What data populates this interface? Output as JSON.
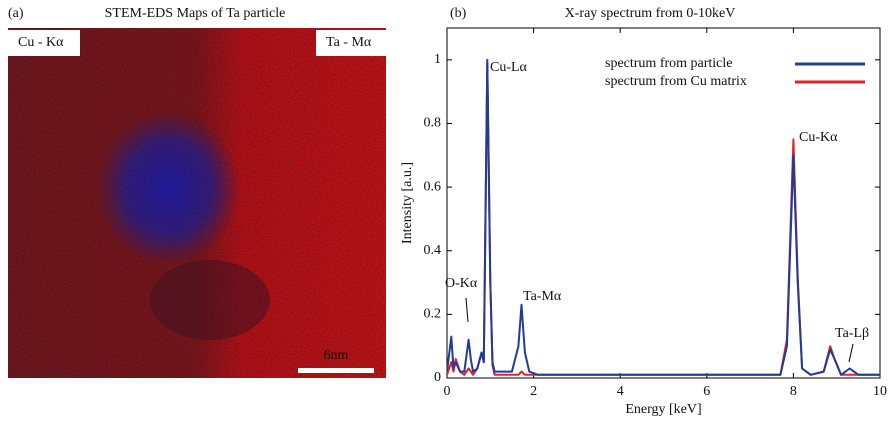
{
  "chart_data": [
    {
      "type": "image",
      "label": "(a)",
      "title": "STEM-EDS Maps of Ta particle",
      "annotations": [
        "Cu - Kα",
        "Ta - Mα",
        "6nm"
      ],
      "colors": [
        "#e4131b",
        "#2a2ab8"
      ]
    },
    {
      "type": "line",
      "label": "(b)",
      "title": "X-ray spectrum from 0-10keV",
      "x_label": "Energy [keV]",
      "y_label": "Intensity [a.u.]",
      "x": [
        0,
        0.1,
        0.15,
        0.2,
        0.3,
        0.4,
        0.5,
        0.55,
        0.6,
        0.7,
        0.8,
        0.85,
        0.93,
        1.0,
        1.05,
        1.1,
        1.2,
        1.5,
        1.65,
        1.72,
        1.8,
        1.9,
        2.1,
        3,
        4,
        5,
        6,
        7,
        7.7,
        7.85,
        8.0,
        8.1,
        8.2,
        8.4,
        8.7,
        8.85,
        8.95,
        9.1,
        9.3,
        9.4,
        9.5,
        9.8,
        10
      ],
      "series": [
        {
          "name": "spectrum from particle",
          "color": "#1f3c96",
          "values": [
            0.02,
            0.13,
            0.03,
            0.05,
            0.02,
            0.02,
            0.12,
            0.06,
            0.02,
            0.03,
            0.08,
            0.05,
            1.0,
            0.3,
            0.05,
            0.02,
            0.02,
            0.02,
            0.1,
            0.23,
            0.08,
            0.02,
            0.01,
            0.01,
            0.01,
            0.01,
            0.01,
            0.01,
            0.01,
            0.1,
            0.7,
            0.3,
            0.03,
            0.01,
            0.02,
            0.09,
            0.06,
            0.01,
            0.03,
            0.02,
            0.01,
            0.01,
            0.01
          ]
        },
        {
          "name": "spectrum from Cu matrix",
          "color": "#e8202a",
          "values": [
            0.01,
            0.05,
            0.02,
            0.06,
            0.02,
            0.01,
            0.03,
            0.02,
            0.01,
            0.03,
            0.08,
            0.05,
            0.99,
            0.3,
            0.04,
            0.01,
            0.01,
            0.01,
            0.01,
            0.02,
            0.01,
            0.01,
            0.01,
            0.01,
            0.01,
            0.01,
            0.01,
            0.01,
            0.01,
            0.12,
            0.75,
            0.32,
            0.03,
            0.01,
            0.02,
            0.1,
            0.06,
            0.01,
            0.01,
            0.01,
            0.01,
            0.01,
            0.01
          ]
        }
      ],
      "annotations": [
        "Cu-Lα",
        "Ta-Mα",
        "O-Kα",
        "Cu-Kα",
        "Ta-Lβ"
      ],
      "xlim": [
        0,
        10
      ],
      "xticks": [
        0,
        2,
        4,
        6,
        8,
        10
      ],
      "ylim": [
        0,
        1.1
      ],
      "yticks": [
        0,
        0.2,
        0.4,
        0.6,
        0.8,
        1
      ],
      "legend": "upper right"
    }
  ]
}
